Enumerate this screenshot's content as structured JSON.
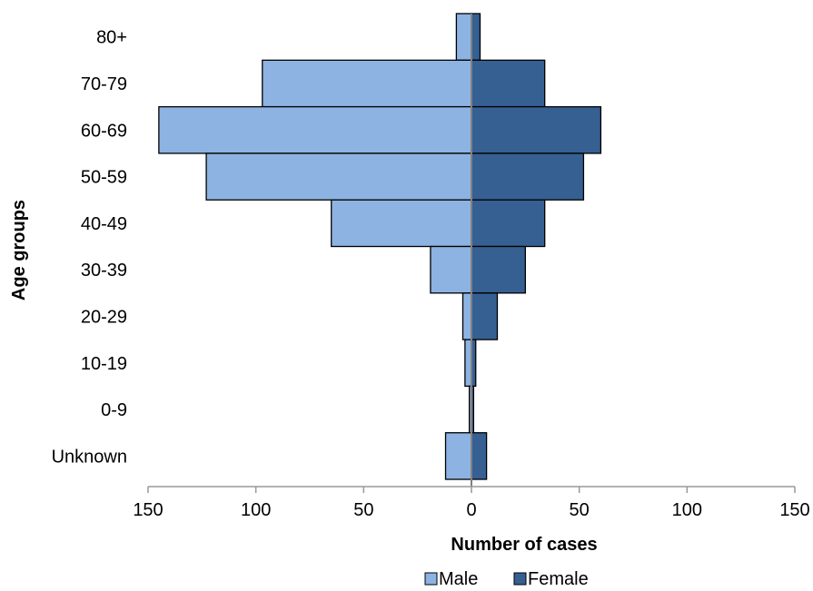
{
  "chart_data": {
    "type": "bar",
    "orientation": "horizontal-population-pyramid",
    "title": "",
    "xlabel": "Number of cases",
    "ylabel": "Age groups",
    "categories": [
      "80+",
      "70-79",
      "60-69",
      "50-59",
      "40-49",
      "30-39",
      "20-29",
      "10-19",
      "0-9",
      "Unknown"
    ],
    "series": [
      {
        "name": "Male",
        "values": [
          7,
          97,
          145,
          123,
          65,
          19,
          4,
          3,
          1,
          12
        ],
        "color": "#8db3e2"
      },
      {
        "name": "Female",
        "values": [
          4,
          34,
          60,
          52,
          34,
          25,
          12,
          2,
          1,
          7
        ],
        "color": "#366092"
      }
    ],
    "xlim": [
      -150,
      150
    ],
    "xticks": [
      -150,
      -100,
      -50,
      0,
      50,
      100,
      150
    ],
    "xtick_labels": [
      "150",
      "100",
      "50",
      "0",
      "50",
      "100",
      "150"
    ],
    "grid": false,
    "legend_placement": "bottom-center"
  }
}
